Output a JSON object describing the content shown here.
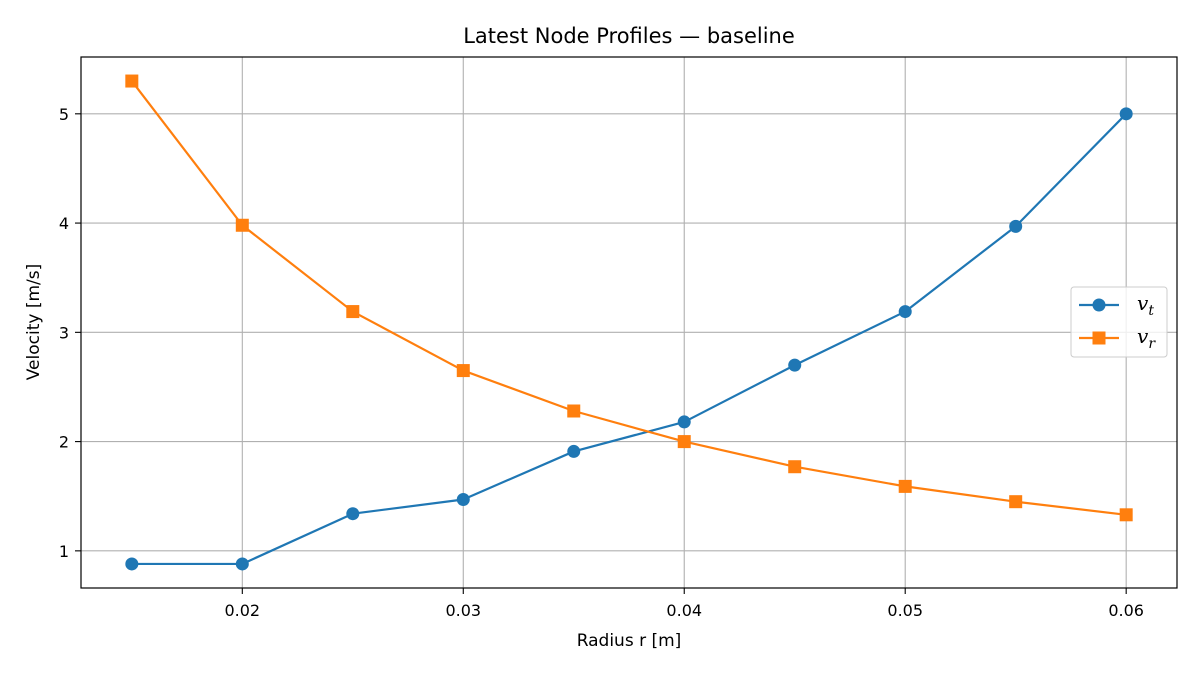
{
  "chart_data": {
    "type": "line",
    "title": "Latest Node Profiles — baseline",
    "xlabel": "Radius r [m]",
    "ylabel": "Velocity [m/s]",
    "xlim": [
      0.0127,
      0.0623
    ],
    "ylim": [
      0.66,
      5.52
    ],
    "xticks": [
      0.02,
      0.03,
      0.04,
      0.05,
      0.06
    ],
    "xtick_labels": [
      "0.02",
      "0.03",
      "0.04",
      "0.05",
      "0.06"
    ],
    "yticks": [
      1,
      2,
      3,
      4,
      5
    ],
    "ytick_labels": [
      "1",
      "2",
      "3",
      "4",
      "5"
    ],
    "grid": true,
    "legend_position": "center-right",
    "x": [
      0.015,
      0.02,
      0.025,
      0.03,
      0.035,
      0.04,
      0.045,
      0.05,
      0.055,
      0.06
    ],
    "series": [
      {
        "name": "v_t",
        "label_main": "v",
        "label_sub": "t",
        "color": "#1f77b4",
        "marker": "circle",
        "values": [
          0.88,
          0.88,
          1.34,
          1.47,
          1.91,
          2.18,
          2.7,
          3.19,
          3.97,
          5.0
        ]
      },
      {
        "name": "v_r",
        "label_main": "v",
        "label_sub": "r",
        "color": "#ff7f0e",
        "marker": "square",
        "values": [
          5.3,
          3.98,
          3.19,
          2.65,
          2.28,
          2.0,
          1.77,
          1.59,
          1.45,
          1.33
        ]
      }
    ]
  }
}
